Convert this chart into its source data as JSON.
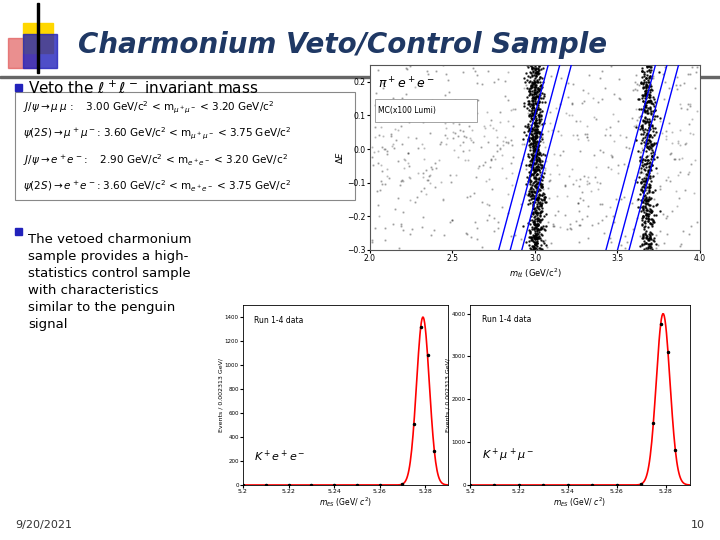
{
  "bg_color": "#ffffff",
  "title": "Charmonium Veto/Control Sample",
  "title_color": "#1F3864",
  "title_fontsize": 20,
  "date_text": "9/20/2021",
  "page_num": "10",
  "logo_yellow": "#FFD700",
  "logo_red": "#DD4444",
  "logo_blue": "#2222bb",
  "logo_black": "#000000",
  "header_line_color": "#888888",
  "bullet_color": "#2222bb",
  "formula_lines": [
    "$J/\\psi \\to \\mu\\,\\mu$ :     3.00 GeV/c$^2$ < m$_{\\mu^+\\mu^-}$ < 3.20 GeV/c$^2$",
    "$\\psi(2S) \\to \\mu^+\\mu^-$: 3.60 GeV/c$^2$ < m$_{\\mu^+\\mu^-}$ < 3.75 GeV/c$^2$",
    "$J/\\psi \\to e^+e^-$:     2.90 GeV/c$^2$ < m$_{e^+e^-}$ < 3.20 GeV/c$^2$",
    "$\\psi(2S) \\to e^+e^-$: 3.60 GeV/c$^2$ < m$_{e^+e^-}$ < 3.75 GeV/c$^2$"
  ],
  "bullet2_lines": [
    "The vetoed charmonium",
    "sample provides a high-",
    "statistics control sample",
    "with characteristics",
    "similar to the penguin",
    "signal"
  ]
}
